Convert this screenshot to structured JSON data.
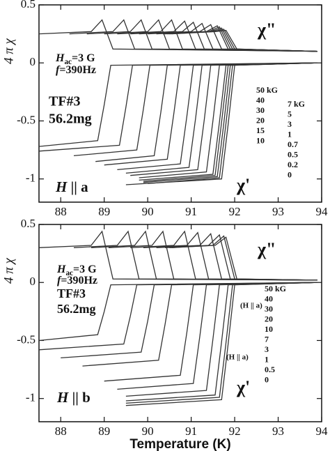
{
  "chart_data": [
    {
      "type": "line",
      "ylabel": "4 π χ",
      "color": "#333",
      "xlim": [
        87.5,
        94
      ],
      "ylim": [
        -1.2,
        0.5
      ],
      "xticks": [
        88,
        89,
        90,
        91,
        92,
        93,
        94
      ],
      "yticks": [
        0.5,
        0,
        -0.5,
        -1
      ],
      "annotations": {
        "chi2": "χ\"",
        "chi1": "χ'",
        "hac": [
          "H",
          "ac",
          "=3 G"
        ],
        "freq": [
          "f",
          "=390Hz"
        ],
        "sample": "TF#3",
        "mass": "56.2mg",
        "field_dir": [
          "H",
          " || a"
        ]
      },
      "field_labels": [
        [
          "50 kG",
          "40",
          "30",
          "20",
          "15",
          "10"
        ],
        [
          "7 kG",
          "5",
          "3",
          "1",
          "0.7",
          "0.5",
          "0.2",
          "0"
        ]
      ],
      "series": [
        {
          "x": [
            87.5,
            88.85,
            89,
            89.15,
            93.9
          ],
          "values": [
            -0.72,
            -0.67,
            -0.36,
            -0.02,
            0
          ]
        },
        {
          "x": [
            87.5,
            89.35,
            89.5,
            89.65,
            93.9
          ],
          "values": [
            -0.76,
            -0.71,
            -0.38,
            -0.02,
            0
          ]
        },
        {
          "x": [
            88.3,
            89.75,
            89.9,
            90.05,
            93.9
          ],
          "values": [
            -0.8,
            -0.75,
            -0.4,
            -0.02,
            0
          ]
        },
        {
          "x": [
            88.8,
            90.15,
            90.3,
            90.45,
            93.9
          ],
          "values": [
            -0.85,
            -0.8,
            -0.43,
            -0.02,
            0
          ]
        },
        {
          "x": [
            89,
            90.45,
            90.6,
            90.75,
            93.9
          ],
          "values": [
            -0.88,
            -0.83,
            -0.44,
            -0.02,
            0
          ]
        },
        {
          "x": [
            89.3,
            90.75,
            90.9,
            91.05,
            93.9
          ],
          "values": [
            -0.92,
            -0.87,
            -0.46,
            -0.02,
            0
          ]
        },
        {
          "x": [
            89.5,
            90.95,
            91.1,
            91.25,
            93.9
          ],
          "values": [
            -0.95,
            -0.9,
            -0.48,
            -0.02,
            0
          ]
        },
        {
          "x": [
            89.6,
            91.15,
            91.3,
            91.45,
            93.9
          ],
          "values": [
            -0.97,
            -0.92,
            -0.49,
            -0.02,
            0
          ]
        },
        {
          "x": [
            89.8,
            91.35,
            91.5,
            91.65,
            93.9
          ],
          "values": [
            -0.99,
            -0.94,
            -0.5,
            -0.02,
            0
          ]
        },
        {
          "x": [
            89.8,
            91.5,
            91.65,
            91.8,
            93.9
          ],
          "values": [
            -1.01,
            -0.96,
            -0.51,
            -0.02,
            0
          ]
        },
        {
          "x": [
            89.9,
            91.55,
            91.7,
            91.85,
            93.9
          ],
          "values": [
            -1.02,
            -0.97,
            -0.51,
            -0.02,
            0
          ]
        },
        {
          "x": [
            89.9,
            91.6,
            91.75,
            91.9,
            93.9
          ],
          "values": [
            -1.03,
            -0.98,
            -0.52,
            -0.02,
            0
          ]
        },
        {
          "x": [
            90,
            91.65,
            91.8,
            91.95,
            93.9
          ],
          "values": [
            -1.04,
            -0.99,
            -0.52,
            -0.02,
            0
          ]
        },
        {
          "x": [
            89.5,
            91.7,
            91.85,
            92,
            93.9
          ],
          "values": [
            -1.05,
            -1,
            -0.53,
            -0.02,
            0
          ]
        },
        {
          "x": [
            87.5,
            88.7,
            88.95,
            89.2,
            93.9
          ],
          "values": [
            0.25,
            0.27,
            0.37,
            0.12,
            0.1
          ]
        },
        {
          "x": [
            88.2,
            89.2,
            89.45,
            89.7,
            93.9
          ],
          "values": [
            0.25,
            0.27,
            0.37,
            0.12,
            0.1
          ]
        },
        {
          "x": [
            88.6,
            89.6,
            89.85,
            90.1,
            93.9
          ],
          "values": [
            0.25,
            0.27,
            0.37,
            0.12,
            0.1
          ]
        },
        {
          "x": [
            89,
            90,
            90.25,
            90.5,
            93.9
          ],
          "values": [
            0.25,
            0.27,
            0.37,
            0.12,
            0.1
          ]
        },
        {
          "x": [
            89.3,
            90.3,
            90.55,
            90.8,
            93.9
          ],
          "values": [
            0.25,
            0.27,
            0.37,
            0.12,
            0.1
          ]
        },
        {
          "x": [
            89.6,
            90.6,
            90.85,
            91.1,
            93.9
          ],
          "values": [
            0.25,
            0.27,
            0.36,
            0.12,
            0.1
          ]
        },
        {
          "x": [
            89.8,
            90.8,
            91.05,
            91.3,
            93.9
          ],
          "values": [
            0.25,
            0.27,
            0.35,
            0.12,
            0.1
          ]
        },
        {
          "x": [
            90,
            91,
            91.25,
            91.5,
            93.9
          ],
          "values": [
            0.25,
            0.27,
            0.34,
            0.12,
            0.1
          ]
        },
        {
          "x": [
            90.2,
            91.2,
            91.45,
            91.7,
            93.9
          ],
          "values": [
            0.25,
            0.27,
            0.33,
            0.12,
            0.1
          ]
        },
        {
          "x": [
            90.35,
            91.35,
            91.6,
            91.85,
            93.9
          ],
          "values": [
            0.25,
            0.27,
            0.32,
            0.12,
            0.1
          ]
        },
        {
          "x": [
            90.4,
            91.4,
            91.65,
            91.9,
            93.9
          ],
          "values": [
            0.25,
            0.27,
            0.31,
            0.12,
            0.1
          ]
        },
        {
          "x": [
            90.45,
            91.45,
            91.7,
            91.95,
            93.9
          ],
          "values": [
            0.25,
            0.27,
            0.3,
            0.12,
            0.1
          ]
        },
        {
          "x": [
            90.5,
            91.5,
            91.75,
            92,
            93.9
          ],
          "values": [
            0.25,
            0.27,
            0.29,
            0.12,
            0.1
          ]
        },
        {
          "x": [
            90.55,
            91.55,
            91.8,
            92.05,
            93.9
          ],
          "values": [
            0.25,
            0.27,
            0.28,
            0.12,
            0.1
          ]
        }
      ]
    },
    {
      "type": "line",
      "ylabel": "4 π χ",
      "xlabel": "Temperature (K)",
      "color": "#333",
      "xlim": [
        87.5,
        94
      ],
      "ylim": [
        -1.2,
        0.5
      ],
      "xticks": [
        88,
        89,
        90,
        91,
        92,
        93,
        94
      ],
      "yticks": [
        0.5,
        0,
        -0.5,
        -1
      ],
      "annotations": {
        "chi2": "χ\"",
        "chi1": "χ'",
        "hac": [
          "H",
          "ac",
          "=3 G"
        ],
        "freq": [
          "f",
          "=390Hz"
        ],
        "sample": "TF#3",
        "mass": "56.2mg",
        "field_dir": [
          "H",
          " || b"
        ],
        "notes": [
          "(H || a)",
          "(H || a)"
        ]
      },
      "field_labels": [
        [
          "50 kG",
          "40",
          "30",
          "20",
          "10",
          "7",
          "3",
          "1",
          "0.5",
          "0"
        ]
      ],
      "series": [
        {
          "x": [
            87.5,
            88.85,
            89,
            89.15,
            93.9
          ],
          "values": [
            -0.5,
            -0.45,
            -0.25,
            -0.02,
            0
          ]
        },
        {
          "x": [
            87.5,
            89.45,
            89.6,
            89.75,
            93.9
          ],
          "values": [
            -0.58,
            -0.53,
            -0.29,
            -0.02,
            0
          ]
        },
        {
          "x": [
            88,
            89.85,
            90,
            90.15,
            93.9
          ],
          "values": [
            -0.65,
            -0.6,
            -0.33,
            -0.02,
            0
          ]
        },
        {
          "x": [
            88.5,
            90.25,
            90.4,
            90.55,
            93.9
          ],
          "values": [
            -0.72,
            -0.67,
            -0.36,
            -0.02,
            0
          ]
        },
        {
          "x": [
            89,
            90.75,
            90.9,
            91.05,
            93.9
          ],
          "values": [
            -0.85,
            -0.8,
            -0.43,
            -0.02,
            0
          ]
        },
        {
          "x": [
            89.3,
            91.05,
            91.2,
            91.35,
            93.9
          ],
          "values": [
            -0.92,
            -0.87,
            -0.46,
            -0.02,
            0
          ]
        },
        {
          "x": [
            89.5,
            91.35,
            91.5,
            91.65,
            93.9
          ],
          "values": [
            -0.98,
            -0.93,
            -0.49,
            -0.02,
            0
          ]
        },
        {
          "x": [
            89.5,
            91.55,
            91.7,
            91.85,
            93.9
          ],
          "values": [
            -1.02,
            -0.97,
            -0.51,
            -0.02,
            0
          ]
        },
        {
          "x": [
            89.5,
            91.65,
            91.8,
            91.95,
            93.9
          ],
          "values": [
            -1.04,
            -0.99,
            -0.52,
            -0.02,
            0
          ]
        },
        {
          "x": [
            89.5,
            91.7,
            91.85,
            92,
            93.9
          ],
          "values": [
            -1.06,
            -1.01,
            -0.53,
            -0.02,
            0
          ]
        },
        {
          "x": [
            87.5,
            88.7,
            88.95,
            89.2,
            93.9
          ],
          "values": [
            0.3,
            0.32,
            0.44,
            0.03,
            0.02
          ]
        },
        {
          "x": [
            88.3,
            89.3,
            89.55,
            89.8,
            93.9
          ],
          "values": [
            0.3,
            0.32,
            0.44,
            0.03,
            0.02
          ]
        },
        {
          "x": [
            88.7,
            89.7,
            89.95,
            90.2,
            93.9
          ],
          "values": [
            0.3,
            0.32,
            0.44,
            0.03,
            0.02
          ]
        },
        {
          "x": [
            89.1,
            90.1,
            90.35,
            90.6,
            93.9
          ],
          "values": [
            0.3,
            0.32,
            0.44,
            0.03,
            0.02
          ]
        },
        {
          "x": [
            89.6,
            90.6,
            90.85,
            91.1,
            93.9
          ],
          "values": [
            0.3,
            0.32,
            0.44,
            0.03,
            0.02
          ]
        },
        {
          "x": [
            89.9,
            90.9,
            91.15,
            91.4,
            93.9
          ],
          "values": [
            0.3,
            0.32,
            0.43,
            0.03,
            0.02
          ]
        },
        {
          "x": [
            90.2,
            91.2,
            91.45,
            91.7,
            93.9
          ],
          "values": [
            0.3,
            0.32,
            0.42,
            0.03,
            0.02
          ]
        },
        {
          "x": [
            90.4,
            91.4,
            91.65,
            91.9,
            93.9
          ],
          "values": [
            0.3,
            0.32,
            0.41,
            0.03,
            0.02
          ]
        },
        {
          "x": [
            90.5,
            91.5,
            91.75,
            92,
            93.9
          ],
          "values": [
            0.3,
            0.32,
            0.4,
            0.03,
            0.02
          ]
        },
        {
          "x": [
            90.55,
            91.55,
            91.8,
            92.05,
            93.9
          ],
          "values": [
            0.3,
            0.32,
            0.39,
            0.03,
            0.02
          ]
        }
      ]
    }
  ]
}
